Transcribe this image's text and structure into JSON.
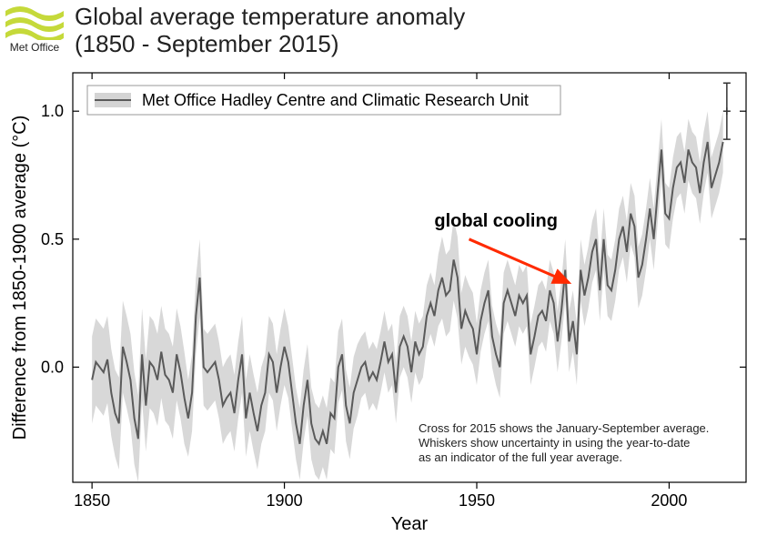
{
  "logo": {
    "label": "Met Office",
    "wave_color": "#c5d93a"
  },
  "title_line1": "Global average temperature anomaly",
  "title_line2": "(1850 - September 2015)",
  "chart": {
    "type": "line",
    "xlabel": "Year",
    "ylabel": "Difference from 1850-1900 average (°C)",
    "xlim": [
      1845,
      2020
    ],
    "ylim": [
      -0.45,
      1.15
    ],
    "xticks": [
      1850,
      1900,
      1950,
      2000
    ],
    "yticks": [
      0.0,
      0.5,
      1.0
    ],
    "ytick_labels": [
      "0.0",
      "0.5",
      "1.0"
    ],
    "tick_fontsize": 18,
    "label_fontsize": 20,
    "background_color": "#ffffff",
    "axis_color": "#000000",
    "line_color": "#5a5a5a",
    "line_width": 2,
    "band_color": "#b8b8b8",
    "band_opacity": 0.55,
    "legend": {
      "label": "Met Office Hadley Centre and Climatic Research Unit",
      "box_stroke": "#999999",
      "sample_band_color": "#b8b8b8",
      "sample_line_color": "#5a5a5a"
    },
    "annotation": {
      "text": "global cooling",
      "text_year": 1955,
      "text_value": 0.55,
      "arrow_color": "#ff2a00",
      "arrow_from": [
        1948,
        0.5
      ],
      "arrow_to": [
        1974,
        0.33
      ]
    },
    "footnote_lines": [
      "Cross for 2015 shows the January-September average.",
      "Whiskers show uncertainty in using the year-to-date",
      "as an indicator of the full year average."
    ],
    "last_point": {
      "year": 2015,
      "value": 1.0,
      "err": 0.11
    },
    "series": [
      {
        "y": 1850,
        "v": -0.05,
        "lo": -0.22,
        "hi": 0.12
      },
      {
        "y": 1851,
        "v": 0.02,
        "lo": -0.15,
        "hi": 0.19
      },
      {
        "y": 1852,
        "v": 0.0,
        "lo": -0.17,
        "hi": 0.17
      },
      {
        "y": 1853,
        "v": -0.02,
        "lo": -0.19,
        "hi": 0.15
      },
      {
        "y": 1854,
        "v": 0.03,
        "lo": -0.14,
        "hi": 0.2
      },
      {
        "y": 1855,
        "v": -0.1,
        "lo": -0.27,
        "hi": 0.07
      },
      {
        "y": 1856,
        "v": -0.18,
        "lo": -0.35,
        "hi": -0.01
      },
      {
        "y": 1857,
        "v": -0.22,
        "lo": -0.4,
        "hi": -0.04
      },
      {
        "y": 1858,
        "v": 0.08,
        "lo": -0.1,
        "hi": 0.26
      },
      {
        "y": 1859,
        "v": 0.02,
        "lo": -0.16,
        "hi": 0.2
      },
      {
        "y": 1860,
        "v": -0.05,
        "lo": -0.23,
        "hi": 0.13
      },
      {
        "y": 1861,
        "v": -0.2,
        "lo": -0.38,
        "hi": -0.02
      },
      {
        "y": 1862,
        "v": -0.28,
        "lo": -0.45,
        "hi": -0.11
      },
      {
        "y": 1863,
        "v": 0.05,
        "lo": -0.13,
        "hi": 0.23
      },
      {
        "y": 1864,
        "v": -0.15,
        "lo": -0.33,
        "hi": 0.03
      },
      {
        "y": 1865,
        "v": 0.02,
        "lo": -0.16,
        "hi": 0.2
      },
      {
        "y": 1866,
        "v": 0.0,
        "lo": -0.18,
        "hi": 0.18
      },
      {
        "y": 1867,
        "v": -0.05,
        "lo": -0.23,
        "hi": 0.13
      },
      {
        "y": 1868,
        "v": 0.06,
        "lo": -0.12,
        "hi": 0.24
      },
      {
        "y": 1869,
        "v": -0.03,
        "lo": -0.21,
        "hi": 0.15
      },
      {
        "y": 1870,
        "v": -0.05,
        "lo": -0.23,
        "hi": 0.13
      },
      {
        "y": 1871,
        "v": -0.1,
        "lo": -0.28,
        "hi": 0.08
      },
      {
        "y": 1872,
        "v": 0.05,
        "lo": -0.13,
        "hi": 0.23
      },
      {
        "y": 1873,
        "v": -0.02,
        "lo": -0.2,
        "hi": 0.16
      },
      {
        "y": 1874,
        "v": -0.12,
        "lo": -0.3,
        "hi": 0.06
      },
      {
        "y": 1875,
        "v": -0.2,
        "lo": -0.35,
        "hi": -0.05
      },
      {
        "y": 1876,
        "v": -0.1,
        "lo": -0.25,
        "hi": 0.05
      },
      {
        "y": 1877,
        "v": 0.2,
        "lo": 0.05,
        "hi": 0.35
      },
      {
        "y": 1878,
        "v": 0.35,
        "lo": 0.2,
        "hi": 0.5
      },
      {
        "y": 1879,
        "v": 0.0,
        "lo": -0.15,
        "hi": 0.15
      },
      {
        "y": 1880,
        "v": -0.02,
        "lo": -0.17,
        "hi": 0.13
      },
      {
        "y": 1881,
        "v": 0.0,
        "lo": -0.15,
        "hi": 0.15
      },
      {
        "y": 1882,
        "v": 0.02,
        "lo": -0.13,
        "hi": 0.17
      },
      {
        "y": 1883,
        "v": -0.05,
        "lo": -0.2,
        "hi": 0.1
      },
      {
        "y": 1884,
        "v": -0.15,
        "lo": -0.3,
        "hi": 0.0
      },
      {
        "y": 1885,
        "v": -0.12,
        "lo": -0.27,
        "hi": 0.03
      },
      {
        "y": 1886,
        "v": -0.1,
        "lo": -0.25,
        "hi": 0.05
      },
      {
        "y": 1887,
        "v": -0.18,
        "lo": -0.33,
        "hi": -0.03
      },
      {
        "y": 1888,
        "v": -0.05,
        "lo": -0.2,
        "hi": 0.1
      },
      {
        "y": 1889,
        "v": 0.05,
        "lo": -0.1,
        "hi": 0.2
      },
      {
        "y": 1890,
        "v": -0.2,
        "lo": -0.35,
        "hi": -0.05
      },
      {
        "y": 1891,
        "v": -0.1,
        "lo": -0.25,
        "hi": 0.05
      },
      {
        "y": 1892,
        "v": -0.18,
        "lo": -0.33,
        "hi": -0.03
      },
      {
        "y": 1893,
        "v": -0.25,
        "lo": -0.4,
        "hi": -0.1
      },
      {
        "y": 1894,
        "v": -0.15,
        "lo": -0.3,
        "hi": 0.0
      },
      {
        "y": 1895,
        "v": -0.1,
        "lo": -0.25,
        "hi": 0.05
      },
      {
        "y": 1896,
        "v": 0.05,
        "lo": -0.1,
        "hi": 0.2
      },
      {
        "y": 1897,
        "v": 0.02,
        "lo": -0.13,
        "hi": 0.17
      },
      {
        "y": 1898,
        "v": -0.1,
        "lo": -0.25,
        "hi": 0.05
      },
      {
        "y": 1899,
        "v": 0.0,
        "lo": -0.15,
        "hi": 0.15
      },
      {
        "y": 1900,
        "v": 0.08,
        "lo": -0.07,
        "hi": 0.23
      },
      {
        "y": 1901,
        "v": 0.02,
        "lo": -0.12,
        "hi": 0.16
      },
      {
        "y": 1902,
        "v": -0.1,
        "lo": -0.24,
        "hi": 0.04
      },
      {
        "y": 1903,
        "v": -0.22,
        "lo": -0.36,
        "hi": -0.08
      },
      {
        "y": 1904,
        "v": -0.3,
        "lo": -0.44,
        "hi": -0.16
      },
      {
        "y": 1905,
        "v": -0.15,
        "lo": -0.29,
        "hi": -0.01
      },
      {
        "y": 1906,
        "v": -0.05,
        "lo": -0.19,
        "hi": 0.09
      },
      {
        "y": 1907,
        "v": -0.22,
        "lo": -0.36,
        "hi": -0.08
      },
      {
        "y": 1908,
        "v": -0.28,
        "lo": -0.42,
        "hi": -0.14
      },
      {
        "y": 1909,
        "v": -0.3,
        "lo": -0.44,
        "hi": -0.16
      },
      {
        "y": 1910,
        "v": -0.25,
        "lo": -0.39,
        "hi": -0.11
      },
      {
        "y": 1911,
        "v": -0.3,
        "lo": -0.44,
        "hi": -0.16
      },
      {
        "y": 1912,
        "v": -0.18,
        "lo": -0.32,
        "hi": -0.04
      },
      {
        "y": 1913,
        "v": -0.2,
        "lo": -0.34,
        "hi": -0.06
      },
      {
        "y": 1914,
        "v": 0.0,
        "lo": -0.14,
        "hi": 0.14
      },
      {
        "y": 1915,
        "v": 0.05,
        "lo": -0.09,
        "hi": 0.19
      },
      {
        "y": 1916,
        "v": -0.15,
        "lo": -0.29,
        "hi": -0.01
      },
      {
        "y": 1917,
        "v": -0.22,
        "lo": -0.36,
        "hi": -0.08
      },
      {
        "y": 1918,
        "v": -0.1,
        "lo": -0.24,
        "hi": 0.04
      },
      {
        "y": 1919,
        "v": -0.05,
        "lo": -0.19,
        "hi": 0.09
      },
      {
        "y": 1920,
        "v": 0.0,
        "lo": -0.12,
        "hi": 0.12
      },
      {
        "y": 1921,
        "v": 0.02,
        "lo": -0.1,
        "hi": 0.14
      },
      {
        "y": 1922,
        "v": -0.05,
        "lo": -0.17,
        "hi": 0.07
      },
      {
        "y": 1923,
        "v": -0.02,
        "lo": -0.14,
        "hi": 0.1
      },
      {
        "y": 1924,
        "v": -0.05,
        "lo": -0.17,
        "hi": 0.07
      },
      {
        "y": 1925,
        "v": 0.02,
        "lo": -0.1,
        "hi": 0.14
      },
      {
        "y": 1926,
        "v": 0.1,
        "lo": -0.02,
        "hi": 0.22
      },
      {
        "y": 1927,
        "v": 0.02,
        "lo": -0.1,
        "hi": 0.14
      },
      {
        "y": 1928,
        "v": 0.05,
        "lo": -0.07,
        "hi": 0.17
      },
      {
        "y": 1929,
        "v": -0.1,
        "lo": -0.22,
        "hi": 0.02
      },
      {
        "y": 1930,
        "v": 0.08,
        "lo": -0.04,
        "hi": 0.2
      },
      {
        "y": 1931,
        "v": 0.12,
        "lo": 0.0,
        "hi": 0.24
      },
      {
        "y": 1932,
        "v": 0.08,
        "lo": -0.04,
        "hi": 0.2
      },
      {
        "y": 1933,
        "v": -0.02,
        "lo": -0.14,
        "hi": 0.1
      },
      {
        "y": 1934,
        "v": 0.1,
        "lo": -0.02,
        "hi": 0.22
      },
      {
        "y": 1935,
        "v": 0.05,
        "lo": -0.07,
        "hi": 0.17
      },
      {
        "y": 1936,
        "v": 0.08,
        "lo": -0.04,
        "hi": 0.2
      },
      {
        "y": 1937,
        "v": 0.2,
        "lo": 0.08,
        "hi": 0.32
      },
      {
        "y": 1938,
        "v": 0.25,
        "lo": 0.13,
        "hi": 0.37
      },
      {
        "y": 1939,
        "v": 0.2,
        "lo": 0.08,
        "hi": 0.32
      },
      {
        "y": 1940,
        "v": 0.3,
        "lo": 0.16,
        "hi": 0.44
      },
      {
        "y": 1941,
        "v": 0.35,
        "lo": 0.19,
        "hi": 0.51
      },
      {
        "y": 1942,
        "v": 0.28,
        "lo": 0.12,
        "hi": 0.44
      },
      {
        "y": 1943,
        "v": 0.3,
        "lo": 0.14,
        "hi": 0.46
      },
      {
        "y": 1944,
        "v": 0.42,
        "lo": 0.26,
        "hi": 0.58
      },
      {
        "y": 1945,
        "v": 0.35,
        "lo": 0.19,
        "hi": 0.51
      },
      {
        "y": 1946,
        "v": 0.15,
        "lo": 0.01,
        "hi": 0.29
      },
      {
        "y": 1947,
        "v": 0.22,
        "lo": 0.08,
        "hi": 0.36
      },
      {
        "y": 1948,
        "v": 0.18,
        "lo": 0.04,
        "hi": 0.32
      },
      {
        "y": 1949,
        "v": 0.15,
        "lo": 0.01,
        "hi": 0.29
      },
      {
        "y": 1950,
        "v": 0.05,
        "lo": -0.07,
        "hi": 0.17
      },
      {
        "y": 1951,
        "v": 0.18,
        "lo": 0.06,
        "hi": 0.3
      },
      {
        "y": 1952,
        "v": 0.25,
        "lo": 0.13,
        "hi": 0.37
      },
      {
        "y": 1953,
        "v": 0.3,
        "lo": 0.18,
        "hi": 0.42
      },
      {
        "y": 1954,
        "v": 0.12,
        "lo": 0.0,
        "hi": 0.24
      },
      {
        "y": 1955,
        "v": 0.05,
        "lo": -0.07,
        "hi": 0.17
      },
      {
        "y": 1956,
        "v": 0.0,
        "lo": -0.12,
        "hi": 0.12
      },
      {
        "y": 1957,
        "v": 0.25,
        "lo": 0.13,
        "hi": 0.37
      },
      {
        "y": 1958,
        "v": 0.3,
        "lo": 0.18,
        "hi": 0.42
      },
      {
        "y": 1959,
        "v": 0.25,
        "lo": 0.13,
        "hi": 0.37
      },
      {
        "y": 1960,
        "v": 0.2,
        "lo": 0.08,
        "hi": 0.32
      },
      {
        "y": 1961,
        "v": 0.28,
        "lo": 0.16,
        "hi": 0.4
      },
      {
        "y": 1962,
        "v": 0.25,
        "lo": 0.13,
        "hi": 0.37
      },
      {
        "y": 1963,
        "v": 0.28,
        "lo": 0.16,
        "hi": 0.4
      },
      {
        "y": 1964,
        "v": 0.05,
        "lo": -0.07,
        "hi": 0.17
      },
      {
        "y": 1965,
        "v": 0.12,
        "lo": 0.0,
        "hi": 0.24
      },
      {
        "y": 1966,
        "v": 0.2,
        "lo": 0.08,
        "hi": 0.32
      },
      {
        "y": 1967,
        "v": 0.22,
        "lo": 0.1,
        "hi": 0.34
      },
      {
        "y": 1968,
        "v": 0.18,
        "lo": 0.06,
        "hi": 0.3
      },
      {
        "y": 1969,
        "v": 0.3,
        "lo": 0.18,
        "hi": 0.42
      },
      {
        "y": 1970,
        "v": 0.25,
        "lo": 0.13,
        "hi": 0.37
      },
      {
        "y": 1971,
        "v": 0.1,
        "lo": -0.02,
        "hi": 0.22
      },
      {
        "y": 1972,
        "v": 0.22,
        "lo": 0.1,
        "hi": 0.34
      },
      {
        "y": 1973,
        "v": 0.38,
        "lo": 0.26,
        "hi": 0.5
      },
      {
        "y": 1974,
        "v": 0.1,
        "lo": -0.02,
        "hi": 0.22
      },
      {
        "y": 1975,
        "v": 0.18,
        "lo": 0.06,
        "hi": 0.3
      },
      {
        "y": 1976,
        "v": 0.05,
        "lo": -0.07,
        "hi": 0.17
      },
      {
        "y": 1977,
        "v": 0.38,
        "lo": 0.26,
        "hi": 0.5
      },
      {
        "y": 1978,
        "v": 0.28,
        "lo": 0.16,
        "hi": 0.4
      },
      {
        "y": 1979,
        "v": 0.35,
        "lo": 0.23,
        "hi": 0.47
      },
      {
        "y": 1980,
        "v": 0.45,
        "lo": 0.33,
        "hi": 0.57
      },
      {
        "y": 1981,
        "v": 0.5,
        "lo": 0.38,
        "hi": 0.62
      },
      {
        "y": 1982,
        "v": 0.3,
        "lo": 0.18,
        "hi": 0.42
      },
      {
        "y": 1983,
        "v": 0.5,
        "lo": 0.38,
        "hi": 0.62
      },
      {
        "y": 1984,
        "v": 0.32,
        "lo": 0.2,
        "hi": 0.44
      },
      {
        "y": 1985,
        "v": 0.3,
        "lo": 0.18,
        "hi": 0.42
      },
      {
        "y": 1986,
        "v": 0.38,
        "lo": 0.26,
        "hi": 0.5
      },
      {
        "y": 1987,
        "v": 0.5,
        "lo": 0.38,
        "hi": 0.62
      },
      {
        "y": 1988,
        "v": 0.55,
        "lo": 0.43,
        "hi": 0.67
      },
      {
        "y": 1989,
        "v": 0.45,
        "lo": 0.33,
        "hi": 0.57
      },
      {
        "y": 1990,
        "v": 0.6,
        "lo": 0.48,
        "hi": 0.72
      },
      {
        "y": 1991,
        "v": 0.55,
        "lo": 0.43,
        "hi": 0.67
      },
      {
        "y": 1992,
        "v": 0.35,
        "lo": 0.23,
        "hi": 0.47
      },
      {
        "y": 1993,
        "v": 0.4,
        "lo": 0.28,
        "hi": 0.52
      },
      {
        "y": 1994,
        "v": 0.5,
        "lo": 0.38,
        "hi": 0.62
      },
      {
        "y": 1995,
        "v": 0.62,
        "lo": 0.5,
        "hi": 0.74
      },
      {
        "y": 1996,
        "v": 0.5,
        "lo": 0.38,
        "hi": 0.62
      },
      {
        "y": 1997,
        "v": 0.68,
        "lo": 0.56,
        "hi": 0.8
      },
      {
        "y": 1998,
        "v": 0.85,
        "lo": 0.73,
        "hi": 0.97
      },
      {
        "y": 1999,
        "v": 0.6,
        "lo": 0.48,
        "hi": 0.72
      },
      {
        "y": 2000,
        "v": 0.58,
        "lo": 0.46,
        "hi": 0.7
      },
      {
        "y": 2001,
        "v": 0.7,
        "lo": 0.58,
        "hi": 0.82
      },
      {
        "y": 2002,
        "v": 0.78,
        "lo": 0.66,
        "hi": 0.9
      },
      {
        "y": 2003,
        "v": 0.8,
        "lo": 0.68,
        "hi": 0.92
      },
      {
        "y": 2004,
        "v": 0.72,
        "lo": 0.6,
        "hi": 0.84
      },
      {
        "y": 2005,
        "v": 0.85,
        "lo": 0.73,
        "hi": 0.97
      },
      {
        "y": 2006,
        "v": 0.8,
        "lo": 0.68,
        "hi": 0.92
      },
      {
        "y": 2007,
        "v": 0.78,
        "lo": 0.66,
        "hi": 0.9
      },
      {
        "y": 2008,
        "v": 0.68,
        "lo": 0.56,
        "hi": 0.8
      },
      {
        "y": 2009,
        "v": 0.8,
        "lo": 0.68,
        "hi": 0.92
      },
      {
        "y": 2010,
        "v": 0.88,
        "lo": 0.76,
        "hi": 1.0
      },
      {
        "y": 2011,
        "v": 0.7,
        "lo": 0.58,
        "hi": 0.82
      },
      {
        "y": 2012,
        "v": 0.75,
        "lo": 0.63,
        "hi": 0.87
      },
      {
        "y": 2013,
        "v": 0.8,
        "lo": 0.68,
        "hi": 0.92
      },
      {
        "y": 2014,
        "v": 0.88,
        "lo": 0.76,
        "hi": 1.0
      }
    ]
  }
}
